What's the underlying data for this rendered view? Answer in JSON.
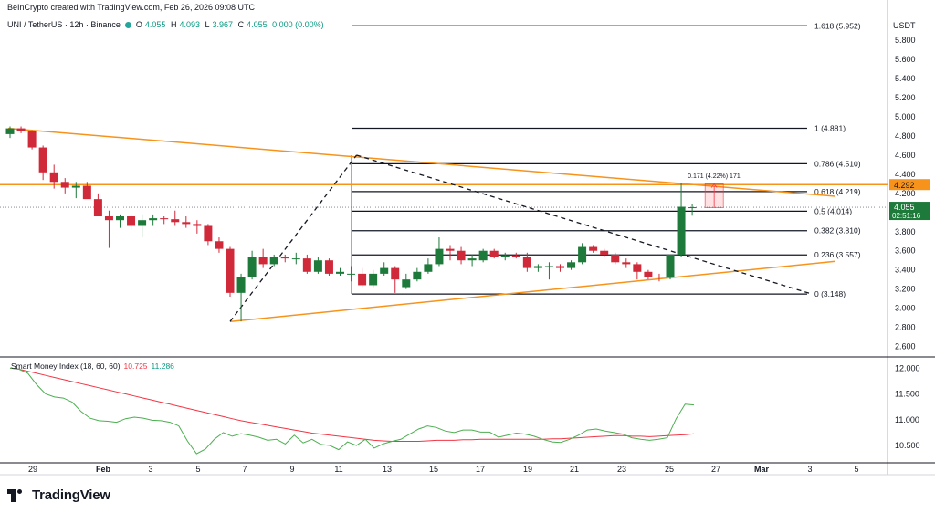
{
  "header": {
    "creator": "BeInCrypto created with TradingView.com, Feb 26, 2026 09:08 UTC",
    "symbol": "UNI / TetherUS · 12h · Binance",
    "ohlc": {
      "o_label": "O",
      "o": "4.055",
      "h_label": "H",
      "h": "4.093",
      "l_label": "L",
      "l": "3.967",
      "c_label": "C",
      "c": "4.055",
      "chg": "0.000 (0.00%)"
    },
    "currency": "USDT"
  },
  "indicator": {
    "name": "Smart Money Index (18, 60, 60)",
    "value1": "10.725",
    "value2": "11.286"
  },
  "branding": {
    "name": "TradingView"
  },
  "colors": {
    "up": "#1e7a3a",
    "down": "#d0293a",
    "trend": "#f7931a",
    "fib": "#131722",
    "smi_line": "#4caf50",
    "smi_signal": "#f23645",
    "tag_orange": "#f7931a",
    "tag_green": "#1e7a3a"
  },
  "chart_data": {
    "type": "candlestick",
    "price_axis": {
      "ylim": [
        2.5,
        6.05
      ],
      "ticks": [
        "5.800",
        "5.600",
        "5.400",
        "5.200",
        "5.000",
        "4.800",
        "4.600",
        "4.400",
        "4.200",
        "4.000",
        "3.800",
        "3.600",
        "3.400",
        "3.200",
        "3.000",
        "2.800",
        "2.600"
      ]
    },
    "x_axis": {
      "labels": [
        "29",
        "Feb",
        "3",
        "5",
        "7",
        "9",
        "11",
        "13",
        "15",
        "17",
        "19",
        "21",
        "23",
        "25",
        "27",
        "Mar",
        "3",
        "5"
      ]
    },
    "candles": [
      {
        "o": 4.82,
        "h": 4.9,
        "l": 4.78,
        "c": 4.88
      },
      {
        "o": 4.88,
        "h": 4.9,
        "l": 4.83,
        "c": 4.85
      },
      {
        "o": 4.85,
        "h": 4.86,
        "l": 4.66,
        "c": 4.68
      },
      {
        "o": 4.68,
        "h": 4.7,
        "l": 4.34,
        "c": 4.42
      },
      {
        "o": 4.42,
        "h": 4.5,
        "l": 4.25,
        "c": 4.32
      },
      {
        "o": 4.32,
        "h": 4.36,
        "l": 4.2,
        "c": 4.26
      },
      {
        "o": 4.26,
        "h": 4.32,
        "l": 4.15,
        "c": 4.28
      },
      {
        "o": 4.28,
        "h": 4.32,
        "l": 4.15,
        "c": 4.14
      },
      {
        "o": 4.14,
        "h": 4.2,
        "l": 3.98,
        "c": 3.96
      },
      {
        "o": 3.96,
        "h": 4.02,
        "l": 3.63,
        "c": 3.92
      },
      {
        "o": 3.92,
        "h": 3.98,
        "l": 3.84,
        "c": 3.96
      },
      {
        "o": 3.96,
        "h": 3.98,
        "l": 3.82,
        "c": 3.86
      },
      {
        "o": 3.86,
        "h": 3.98,
        "l": 3.74,
        "c": 3.92
      },
      {
        "o": 3.92,
        "h": 3.98,
        "l": 3.86,
        "c": 3.94
      },
      {
        "o": 3.94,
        "h": 3.96,
        "l": 3.88,
        "c": 3.93
      },
      {
        "o": 3.93,
        "h": 4.02,
        "l": 3.86,
        "c": 3.9
      },
      {
        "o": 3.9,
        "h": 3.96,
        "l": 3.84,
        "c": 3.88
      },
      {
        "o": 3.88,
        "h": 3.92,
        "l": 3.78,
        "c": 3.86
      },
      {
        "o": 3.86,
        "h": 3.88,
        "l": 3.66,
        "c": 3.7
      },
      {
        "o": 3.7,
        "h": 3.74,
        "l": 3.58,
        "c": 3.62
      },
      {
        "o": 3.62,
        "h": 3.64,
        "l": 3.12,
        "c": 3.16
      },
      {
        "o": 3.16,
        "h": 3.36,
        "l": 2.86,
        "c": 3.33
      },
      {
        "o": 3.33,
        "h": 3.6,
        "l": 3.3,
        "c": 3.54
      },
      {
        "o": 3.54,
        "h": 3.62,
        "l": 3.42,
        "c": 3.46
      },
      {
        "o": 3.46,
        "h": 3.56,
        "l": 3.44,
        "c": 3.54
      },
      {
        "o": 3.54,
        "h": 3.56,
        "l": 3.48,
        "c": 3.52
      },
      {
        "o": 3.52,
        "h": 3.58,
        "l": 3.46,
        "c": 3.52
      },
      {
        "o": 3.52,
        "h": 3.56,
        "l": 3.36,
        "c": 3.38
      },
      {
        "o": 3.38,
        "h": 3.54,
        "l": 3.36,
        "c": 3.5
      },
      {
        "o": 3.5,
        "h": 3.52,
        "l": 3.34,
        "c": 3.36
      },
      {
        "o": 3.36,
        "h": 3.42,
        "l": 3.34,
        "c": 3.38
      },
      {
        "o": 3.36,
        "h": 3.44,
        "l": 3.28,
        "c": 3.36
      },
      {
        "o": 3.36,
        "h": 3.42,
        "l": 3.22,
        "c": 3.24
      },
      {
        "o": 3.24,
        "h": 3.4,
        "l": 3.22,
        "c": 3.36
      },
      {
        "o": 3.36,
        "h": 3.48,
        "l": 3.34,
        "c": 3.42
      },
      {
        "o": 3.42,
        "h": 3.44,
        "l": 3.16,
        "c": 3.3
      },
      {
        "o": 3.22,
        "h": 3.36,
        "l": 3.2,
        "c": 3.3
      },
      {
        "o": 3.3,
        "h": 3.42,
        "l": 3.28,
        "c": 3.38
      },
      {
        "o": 3.38,
        "h": 3.52,
        "l": 3.36,
        "c": 3.46
      },
      {
        "o": 3.46,
        "h": 3.74,
        "l": 3.44,
        "c": 3.62
      },
      {
        "o": 3.62,
        "h": 3.66,
        "l": 3.5,
        "c": 3.6
      },
      {
        "o": 3.6,
        "h": 3.64,
        "l": 3.46,
        "c": 3.5
      },
      {
        "o": 3.5,
        "h": 3.56,
        "l": 3.44,
        "c": 3.52
      },
      {
        "o": 3.5,
        "h": 3.62,
        "l": 3.48,
        "c": 3.6
      },
      {
        "o": 3.6,
        "h": 3.62,
        "l": 3.52,
        "c": 3.54
      },
      {
        "o": 3.54,
        "h": 3.58,
        "l": 3.5,
        "c": 3.55
      },
      {
        "o": 3.55,
        "h": 3.58,
        "l": 3.52,
        "c": 3.54
      },
      {
        "o": 3.54,
        "h": 3.58,
        "l": 3.38,
        "c": 3.42
      },
      {
        "o": 3.42,
        "h": 3.46,
        "l": 3.38,
        "c": 3.44
      },
      {
        "o": 3.44,
        "h": 3.48,
        "l": 3.3,
        "c": 3.44
      },
      {
        "o": 3.44,
        "h": 3.46,
        "l": 3.38,
        "c": 3.42
      },
      {
        "o": 3.42,
        "h": 3.5,
        "l": 3.4,
        "c": 3.48
      },
      {
        "o": 3.48,
        "h": 3.68,
        "l": 3.46,
        "c": 3.64
      },
      {
        "o": 3.64,
        "h": 3.66,
        "l": 3.58,
        "c": 3.6
      },
      {
        "o": 3.6,
        "h": 3.62,
        "l": 3.54,
        "c": 3.56
      },
      {
        "o": 3.56,
        "h": 3.58,
        "l": 3.46,
        "c": 3.48
      },
      {
        "o": 3.48,
        "h": 3.52,
        "l": 3.42,
        "c": 3.46
      },
      {
        "o": 3.46,
        "h": 3.48,
        "l": 3.3,
        "c": 3.38
      },
      {
        "o": 3.38,
        "h": 3.4,
        "l": 3.3,
        "c": 3.33
      },
      {
        "o": 3.33,
        "h": 3.36,
        "l": 3.28,
        "c": 3.32
      },
      {
        "o": 3.32,
        "h": 3.56,
        "l": 3.3,
        "c": 3.56
      },
      {
        "o": 3.56,
        "h": 4.31,
        "l": 3.54,
        "c": 4.06
      },
      {
        "o": 4.055,
        "h": 4.093,
        "l": 3.967,
        "c": 4.055
      }
    ],
    "fib_levels": [
      {
        "ratio": "1.618",
        "price": 5.952,
        "label": "1.618 (5.952)"
      },
      {
        "ratio": "1",
        "price": 4.881,
        "label": "1 (4.881)"
      },
      {
        "ratio": "0.786",
        "price": 4.51,
        "label": "0.786 (4.510)"
      },
      {
        "ratio": "0.618",
        "price": 4.219,
        "label": "0.618 (4.219)"
      },
      {
        "ratio": "0.5",
        "price": 4.014,
        "label": "0.5 (4.014)"
      },
      {
        "ratio": "0.382",
        "price": 3.81,
        "label": "0.382 (3.810)"
      },
      {
        "ratio": "0.236",
        "price": 3.557,
        "label": "0.236 (3.557)"
      },
      {
        "ratio": "0",
        "price": 3.148,
        "label": "0 (3.148)"
      }
    ],
    "horizontal_line": {
      "price": 4.292,
      "label": "4.292"
    },
    "current_price": {
      "price": 4.055,
      "label": "4.055",
      "countdown": "02:51:16"
    },
    "measure": {
      "label": "0.171 (4.22%) 171"
    },
    "smi": {
      "ylim": [
        10.2,
        12.2
      ],
      "ticks": [
        "12.000",
        "11.500",
        "11.000",
        "10.500"
      ],
      "line": [
        12.0,
        11.98,
        11.9,
        11.68,
        11.5,
        11.44,
        11.42,
        11.34,
        11.16,
        11.03,
        10.98,
        10.97,
        10.95,
        11.02,
        11.05,
        11.03,
        10.99,
        10.98,
        10.95,
        10.88,
        10.58,
        10.34,
        10.43,
        10.62,
        10.75,
        10.68,
        10.73,
        10.7,
        10.66,
        10.6,
        10.62,
        10.53,
        10.7,
        10.55,
        10.62,
        10.52,
        10.5,
        10.42,
        10.57,
        10.5,
        10.62,
        10.45,
        10.53,
        10.58,
        10.62,
        10.72,
        10.82,
        10.88,
        10.85,
        10.78,
        10.75,
        10.8,
        10.8,
        10.76,
        10.76,
        10.66,
        10.7,
        10.74,
        10.72,
        10.68,
        10.62,
        10.57,
        10.56,
        10.62,
        10.7,
        10.8,
        10.82,
        10.78,
        10.75,
        10.72,
        10.65,
        10.62,
        10.6,
        10.62,
        10.65,
        11.02,
        11.3,
        11.286
      ],
      "signal": [
        12.0,
        11.98,
        11.94,
        11.9,
        11.86,
        11.82,
        11.78,
        11.74,
        11.7,
        11.66,
        11.62,
        11.58,
        11.54,
        11.5,
        11.46,
        11.42,
        11.38,
        11.34,
        11.3,
        11.26,
        11.22,
        11.18,
        11.14,
        11.1,
        11.06,
        11.02,
        10.98,
        10.95,
        10.92,
        10.89,
        10.86,
        10.83,
        10.8,
        10.77,
        10.74,
        10.72,
        10.7,
        10.68,
        10.66,
        10.64,
        10.62,
        10.6,
        10.59,
        10.58,
        10.58,
        10.58,
        10.58,
        10.59,
        10.6,
        10.6,
        10.6,
        10.61,
        10.61,
        10.62,
        10.62,
        10.62,
        10.62,
        10.62,
        10.62,
        10.62,
        10.62,
        10.63,
        10.63,
        10.64,
        10.65,
        10.66,
        10.67,
        10.68,
        10.69,
        10.69,
        10.68,
        10.68,
        10.67,
        10.68,
        10.69,
        10.7,
        10.71,
        10.725
      ]
    }
  }
}
